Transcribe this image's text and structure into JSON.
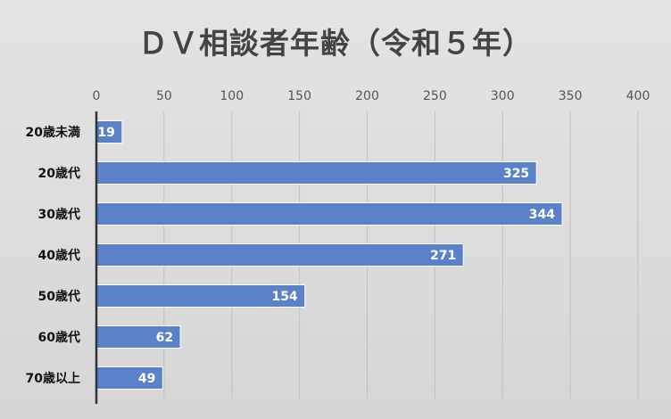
{
  "chart_data": {
    "type": "bar",
    "orientation": "horizontal",
    "title": "ＤＶ相談者年齢（令和５年）",
    "categories": [
      "20歳未満",
      "20歳代",
      "30歳代",
      "40歳代",
      "50歳代",
      "60歳代",
      "70歳以上"
    ],
    "values": [
      19,
      325,
      344,
      271,
      154,
      62,
      49
    ],
    "value_axis_position": "top",
    "xlim": [
      0,
      400
    ],
    "x_ticks": [
      0,
      50,
      100,
      150,
      200,
      250,
      300,
      350,
      400
    ],
    "grid": true,
    "bar_color": "#5b82c9",
    "data_labels": true,
    "legend": false
  }
}
